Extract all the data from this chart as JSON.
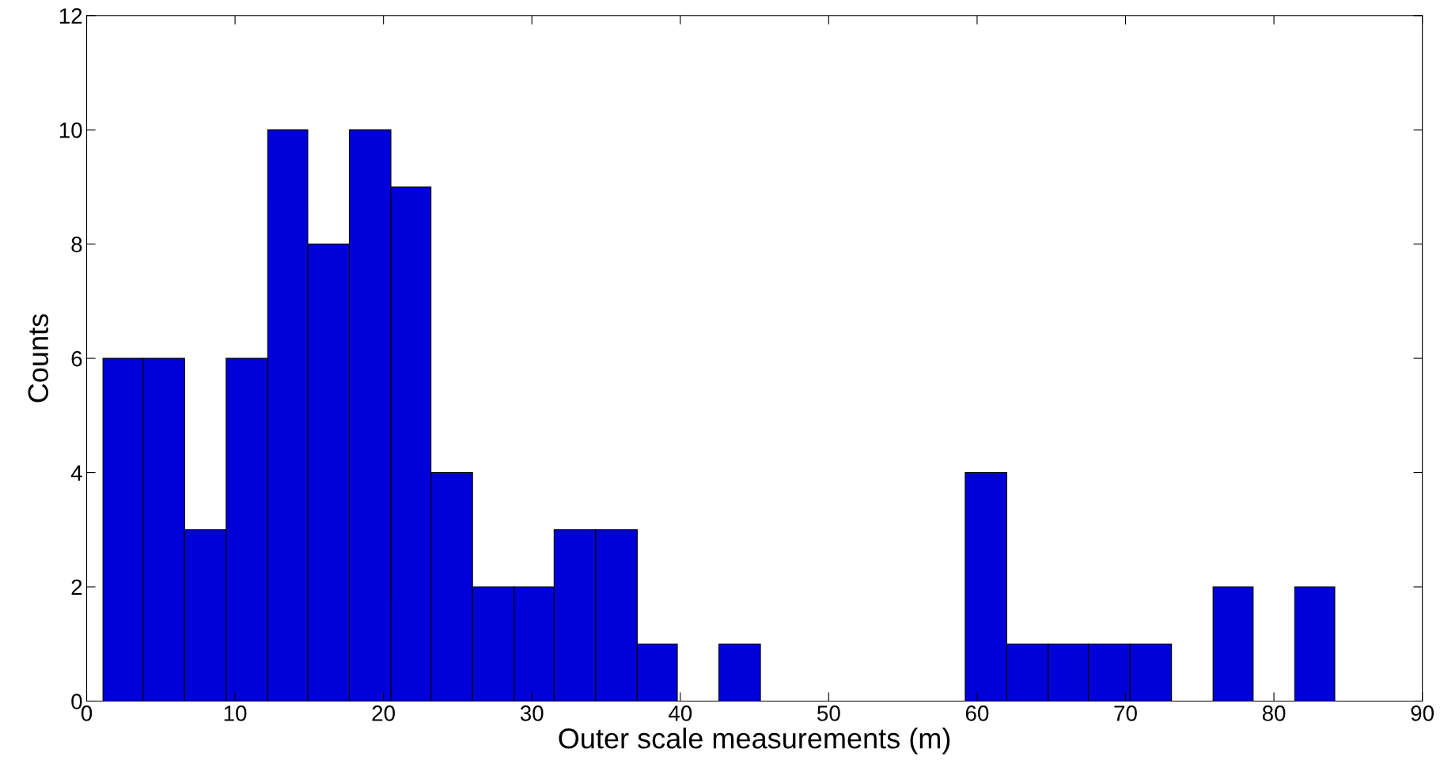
{
  "chart_data": {
    "type": "histogram",
    "xlabel": "Outer scale measurements (m)",
    "ylabel": "Counts",
    "bins": [
      1.1,
      3.8,
      6.6,
      9.4,
      12.2,
      14.9,
      17.7,
      20.5,
      23.2,
      26.0,
      28.8,
      31.5,
      34.3,
      37.1,
      39.8,
      42.6,
      45.4,
      59.2,
      62.0,
      64.8,
      67.5,
      70.3,
      73.1,
      75.9,
      78.6,
      81.4,
      84.1
    ],
    "values": [
      6,
      6,
      3,
      6,
      10,
      8,
      10,
      9,
      4,
      2,
      2,
      3,
      3,
      1,
      0,
      1,
      0,
      4,
      1,
      1,
      1,
      1,
      0,
      2,
      0,
      2
    ],
    "color": "#0000d8",
    "xlim": [
      0,
      90
    ],
    "xticks": [
      0,
      10,
      20,
      30,
      40,
      50,
      60,
      70,
      80,
      90
    ],
    "ylim": [
      0,
      12
    ],
    "yticks": [
      0,
      2,
      4,
      6,
      8,
      10,
      12
    ],
    "grid": false,
    "legend": false
  }
}
